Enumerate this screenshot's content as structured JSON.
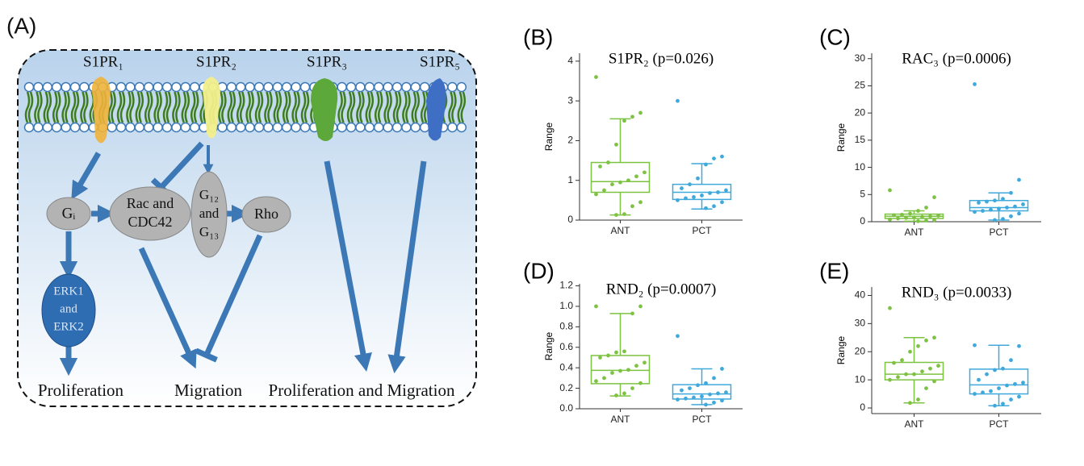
{
  "diagram": {
    "label": "(A)",
    "receptors": [
      "S1PR₁",
      "S1PR₂",
      "S1PR₃",
      "S1PR₅"
    ],
    "nodes": {
      "gi": "Gᵢ",
      "rac": [
        "Rac and",
        "CDC42"
      ],
      "g12": [
        "G₁₂",
        "and",
        "G₁₃"
      ],
      "rho": "Rho",
      "erk": [
        "ERK1",
        "and",
        "ERK2"
      ]
    },
    "outputs": [
      "Proliferation",
      "Migration",
      "Proliferation and Migration"
    ]
  },
  "chart_data": [
    {
      "type": "box",
      "label": "(B)",
      "title": "S1PR₂ (p=0.026)",
      "ylabel": "Range",
      "ylim": [
        0,
        4.2
      ],
      "yticks": [
        0,
        1,
        2,
        3,
        4
      ],
      "series": [
        {
          "name": "ANT",
          "color": "#7dc242",
          "min": 0.13,
          "q1": 0.7,
          "median": 0.97,
          "q3": 1.45,
          "max": 2.55,
          "points": [
            3.6,
            2.7,
            2.6,
            2.5,
            1.9,
            1.45,
            1.35,
            1.2,
            1.1,
            1.0,
            0.95,
            0.9,
            0.75,
            0.65,
            0.45,
            0.35,
            0.15,
            0.13
          ]
        },
        {
          "name": "PCT",
          "color": "#3fa9dc",
          "min": 0.28,
          "q1": 0.52,
          "median": 0.7,
          "q3": 0.9,
          "max": 1.42,
          "points": [
            3.0,
            1.6,
            1.55,
            1.4,
            1.05,
            0.9,
            0.8,
            0.75,
            0.7,
            0.68,
            0.62,
            0.58,
            0.55,
            0.5,
            0.45,
            0.35,
            0.3
          ]
        }
      ]
    },
    {
      "type": "box",
      "label": "(C)",
      "title": "RAC₃ (p=0.0006)",
      "ylabel": "Range",
      "ylim": [
        0,
        31
      ],
      "yticks": [
        0,
        5,
        10,
        15,
        20,
        25,
        30
      ],
      "series": [
        {
          "name": "ANT",
          "color": "#7dc242",
          "min": 0.1,
          "q1": 0.6,
          "median": 1.0,
          "q3": 1.4,
          "max": 2.0,
          "points": [
            5.8,
            4.5,
            2.6,
            2.0,
            1.5,
            1.3,
            1.2,
            1.1,
            1.0,
            0.9,
            0.8,
            0.7,
            0.6,
            0.4,
            0.3,
            0.2,
            0.1
          ]
        },
        {
          "name": "PCT",
          "color": "#3fa9dc",
          "min": 0.3,
          "q1": 2.0,
          "median": 2.6,
          "q3": 3.9,
          "max": 5.3,
          "points": [
            25.3,
            7.7,
            5.3,
            4.2,
            3.9,
            3.7,
            3.5,
            3.2,
            2.8,
            2.6,
            2.4,
            2.2,
            2.0,
            1.8,
            1.5,
            1.0,
            0.5,
            0.3
          ]
        }
      ]
    },
    {
      "type": "box",
      "label": "(D)",
      "title": "RND₂ (p=0.0007)",
      "ylabel": "Range",
      "ylim": [
        0,
        1.22
      ],
      "yticks": [
        {
          "value": 0,
          "label": "0.0"
        },
        0.2,
        0.4,
        0.6,
        0.8,
        {
          "value": 1,
          "label": "1.0"
        },
        1.2
      ],
      "series": [
        {
          "name": "ANT",
          "color": "#7dc242",
          "min": 0.125,
          "q1": 0.245,
          "median": 0.375,
          "q3": 0.52,
          "max": 0.93,
          "points": [
            1.0,
            1.0,
            0.93,
            0.56,
            0.55,
            0.52,
            0.5,
            0.45,
            0.42,
            0.38,
            0.37,
            0.35,
            0.3,
            0.27,
            0.25,
            0.2,
            0.15,
            0.13
          ]
        },
        {
          "name": "PCT",
          "color": "#3fa9dc",
          "min": 0.04,
          "q1": 0.095,
          "median": 0.145,
          "q3": 0.235,
          "max": 0.39,
          "points": [
            0.71,
            0.39,
            0.3,
            0.25,
            0.23,
            0.2,
            0.18,
            0.16,
            0.15,
            0.14,
            0.12,
            0.11,
            0.1,
            0.09,
            0.08,
            0.06,
            0.04
          ]
        }
      ]
    },
    {
      "type": "box",
      "label": "(E)",
      "title": "RND₃ (p=0.0033)",
      "ylabel": "Range",
      "ylim": [
        -2,
        43
      ],
      "yticks": [
        0,
        10,
        20,
        30,
        40
      ],
      "series": [
        {
          "name": "ANT",
          "color": "#7dc242",
          "min": 1.8,
          "q1": 10,
          "median": 12,
          "q3": 16.2,
          "max": 25,
          "points": [
            35.5,
            25,
            24,
            22,
            20,
            17,
            16,
            15,
            14,
            13,
            12,
            12,
            11,
            10,
            9.5,
            7,
            3,
            1.8
          ]
        },
        {
          "name": "PCT",
          "color": "#3fa9dc",
          "min": 0.8,
          "q1": 5,
          "median": 8.2,
          "q3": 13.8,
          "max": 22.3,
          "points": [
            22.3,
            22,
            17,
            14,
            13.5,
            12,
            10,
            9,
            8.5,
            8,
            7,
            6,
            5.5,
            5,
            4,
            3,
            1.5,
            0.8
          ]
        }
      ]
    }
  ]
}
